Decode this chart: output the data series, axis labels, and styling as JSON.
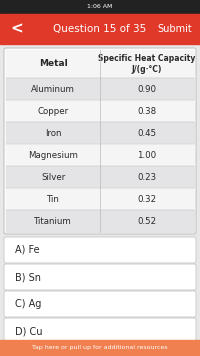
{
  "status_bar_text": "1:06 AM",
  "header_text": "Question 15 of 35",
  "submit_text": "Submit",
  "header_bg": "#e0392a",
  "table_header_col1": "Metal",
  "table_header_col2": "Specific Heat Capacity\nJ/(g·°C)",
  "table_rows": [
    [
      "Aluminum",
      "0.90"
    ],
    [
      "Copper",
      "0.38"
    ],
    [
      "Iron",
      "0.45"
    ],
    [
      "Magnesium",
      "1.00"
    ],
    [
      "Silver",
      "0.23"
    ],
    [
      "Tin",
      "0.32"
    ],
    [
      "Titanium",
      "0.52"
    ]
  ],
  "row_colors_alt": [
    "#e4e4e6",
    "#f5f5f5"
  ],
  "header_row_bg": "#f5f5f5",
  "table_bg": "#ffffff",
  "options": [
    "A) Fe",
    "B) Sn",
    "C) Ag",
    "D) Cu"
  ],
  "footer_text": "Tap here or pull up for additional resources",
  "footer_bg": "#f08050",
  "page_bg": "#e8e8e8",
  "status_bg": "#222222",
  "table_border": "#bbbbbb",
  "option_border": "#cccccc",
  "text_dark": "#2a2a2a",
  "text_mid": "#555555"
}
